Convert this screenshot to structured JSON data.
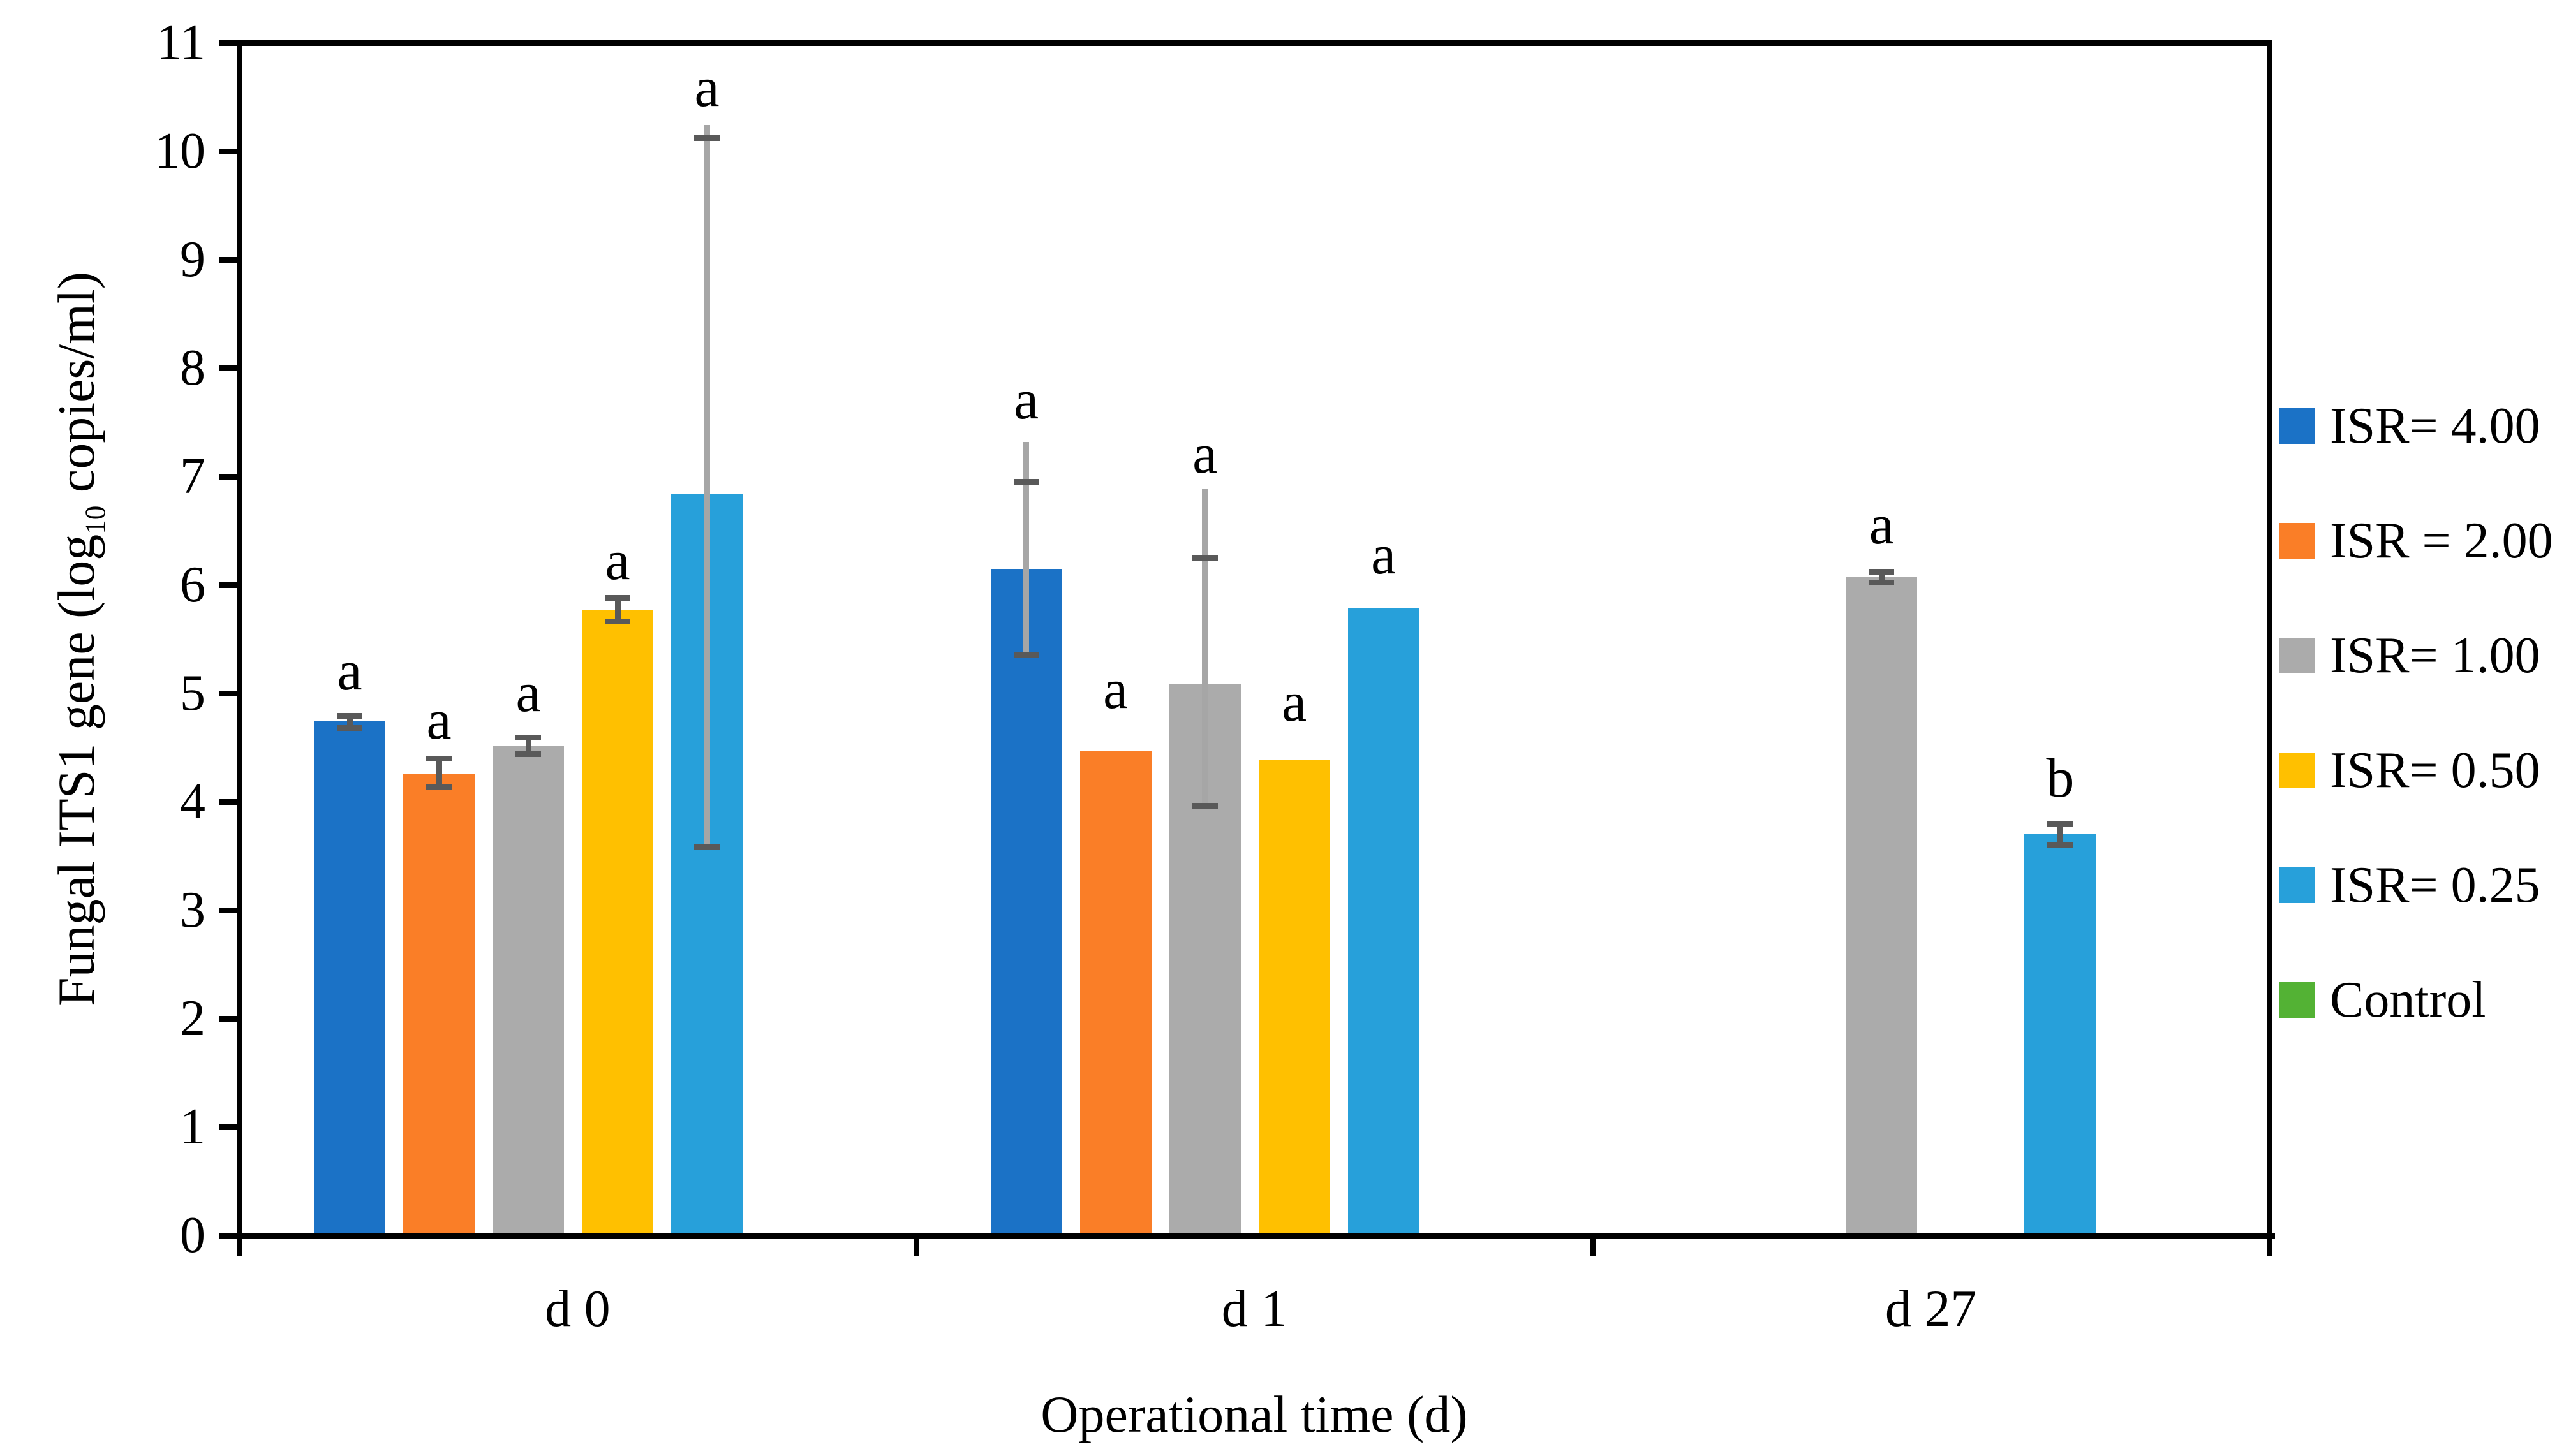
{
  "chart_data": {
    "type": "bar",
    "title": "",
    "xlabel": "Operational time (d)",
    "ylabel_prefix": "Fungal  ITS1 gene (log",
    "ylabel_sub": "10",
    "ylabel_suffix": " copies/ml)",
    "categories": [
      "d 0",
      "d 1",
      "d 27"
    ],
    "y_axis": {
      "min": 0,
      "max": 11,
      "step": 1,
      "ticks": [
        "0",
        "1",
        "2",
        "3",
        "4",
        "5",
        "6",
        "7",
        "8",
        "9",
        "10",
        "11"
      ]
    },
    "grid": false,
    "legend_position": "right",
    "background": "#FFFFFF",
    "axis_color": "#000000",
    "error_bar_cap_color": "#595959",
    "error_bar_short_line_color": "#595959",
    "error_bar_long_line_color": "#A6A6A6",
    "significance_letter_color": "#000000",
    "series": [
      {
        "name": "ISR= 4.00",
        "color": "#1B72C6",
        "values": [
          4.74,
          6.15,
          null
        ],
        "errors": [
          {
            "lo": 4.68,
            "hi": 4.79
          },
          {
            "lo": 5.35,
            "hi": 6.95,
            "line_top": 7.32
          },
          null
        ],
        "letters": [
          {
            "text": "a",
            "v": 5.2
          },
          {
            "text": "a",
            "v": 7.7
          },
          null
        ]
      },
      {
        "name": "ISR = 2.00",
        "color": "#FA7E27",
        "values": [
          4.26,
          4.47,
          null
        ],
        "errors": [
          {
            "lo": 4.13,
            "hi": 4.4
          },
          null,
          null
        ],
        "letters": [
          {
            "text": "a",
            "v": 4.75
          },
          {
            "text": "a",
            "v": 5.03
          },
          null
        ]
      },
      {
        "name": "ISR= 1.00",
        "color": "#ABABAB",
        "values": [
          4.51,
          5.08,
          6.07
        ],
        "errors": [
          {
            "lo": 4.44,
            "hi": 4.59
          },
          {
            "lo": 3.96,
            "hi": 6.25,
            "line_top": 6.88
          },
          {
            "lo": 6.02,
            "hi": 6.12
          }
        ],
        "letters": [
          {
            "text": "a",
            "v": 5.0
          },
          {
            "text": "a",
            "v": 7.2
          },
          {
            "text": "a",
            "v": 6.55
          }
        ]
      },
      {
        "name": "ISR= 0.50",
        "color": "#FFC000",
        "values": [
          5.77,
          4.39,
          null
        ],
        "errors": [
          {
            "lo": 5.66,
            "hi": 5.88
          },
          null,
          null
        ],
        "letters": [
          {
            "text": "a",
            "v": 6.22
          },
          {
            "text": "a",
            "v": 4.91
          },
          null
        ]
      },
      {
        "name": "ISR= 0.25",
        "color": "#27A0DA",
        "values": [
          6.84,
          5.78,
          3.7
        ],
        "errors": [
          {
            "lo": 3.58,
            "hi": 10.12,
            "line_top": 10.24
          },
          null,
          {
            "lo": 3.6,
            "hi": 3.8
          }
        ],
        "letters": [
          {
            "text": "a",
            "v": 10.58
          },
          {
            "text": "a",
            "v": 6.27
          },
          {
            "text": "b",
            "v": 4.21
          }
        ]
      },
      {
        "name": "Control",
        "color": "#53B234",
        "values": [
          null,
          null,
          null
        ],
        "errors": [
          null,
          null,
          null
        ],
        "letters": [
          null,
          null,
          null
        ]
      }
    ]
  }
}
